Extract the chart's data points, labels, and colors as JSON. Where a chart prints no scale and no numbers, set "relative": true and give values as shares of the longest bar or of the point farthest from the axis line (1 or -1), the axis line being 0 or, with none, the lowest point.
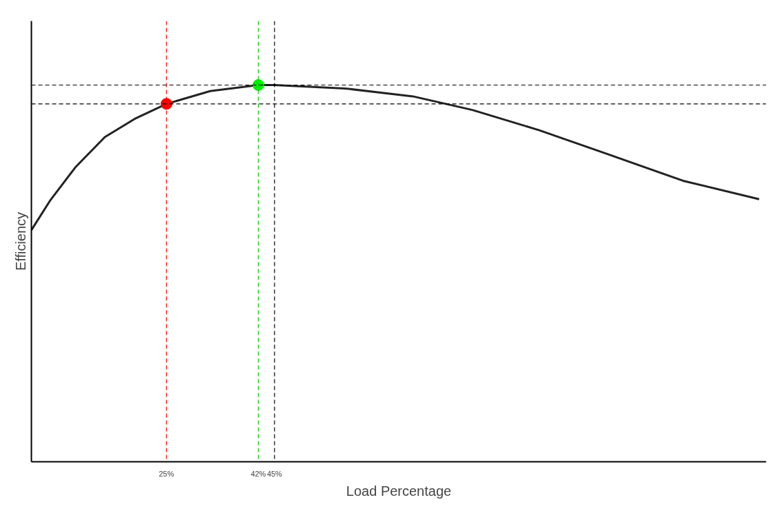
{
  "chart_data": {
    "type": "line",
    "relative": true,
    "xlabel": "Load Percentage",
    "ylabel": "Efficiency",
    "xlim": [
      0,
      136
    ],
    "xticks": [
      {
        "value": 25,
        "label": "25%"
      },
      {
        "value": 42,
        "label": "42%"
      },
      {
        "value": 45,
        "label": "45%"
      }
    ],
    "grid": false,
    "line_style": "solid",
    "series": [
      {
        "color": "#222222",
        "x": [
          0,
          3.4,
          8.1,
          13.6,
          19.1,
          25,
          33.1,
          42,
          45,
          58,
          70.6,
          81.6,
          94,
          106.6,
          120.6,
          134.7
        ],
        "values": [
          0.615,
          0.692,
          0.781,
          0.862,
          0.91,
          0.95,
          0.984,
          1.0,
          1.0,
          0.991,
          0.97,
          0.934,
          0.88,
          0.817,
          0.746,
          0.697
        ]
      },
      {
        "type": "scatter",
        "marker": "circle",
        "color": "#ff0000",
        "x": [
          25
        ],
        "values": [
          0.95
        ]
      },
      {
        "type": "scatter",
        "marker": "circle",
        "color": "#00ee00",
        "x": [
          42
        ],
        "values": [
          1.0
        ]
      }
    ],
    "ref_lines": [
      {
        "axis": "x",
        "value": 25,
        "color": "#ff0000",
        "line_style": "dashed"
      },
      {
        "axis": "x",
        "value": 42,
        "color": "#00cc00",
        "line_style": "dashed"
      },
      {
        "axis": "x",
        "value": 45,
        "color": "#000000",
        "line_style": "dashed"
      },
      {
        "axis": "y",
        "value": 1.0,
        "color": "#000000",
        "line_style": "dashed"
      },
      {
        "axis": "y",
        "value": 0.95,
        "color": "#000000",
        "line_style": "dashed"
      }
    ]
  }
}
